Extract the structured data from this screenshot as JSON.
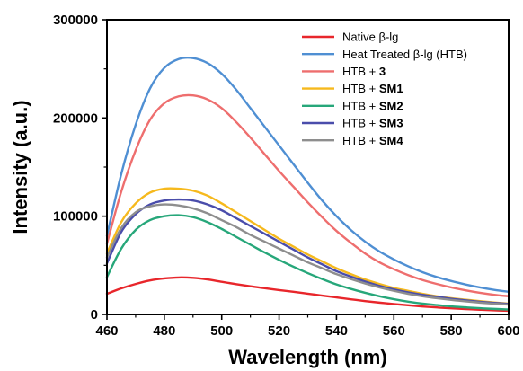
{
  "chart_data": {
    "type": "line",
    "xlabel": "Wavelength (nm)",
    "ylabel": "Intensity (a.u.)",
    "xlim": [
      460,
      600
    ],
    "ylim": [
      0,
      300000
    ],
    "xticks": [
      460,
      480,
      500,
      520,
      540,
      560,
      580,
      600
    ],
    "yticks": [
      0,
      100000,
      200000,
      300000
    ],
    "x": [
      460,
      465,
      470,
      475,
      480,
      485,
      490,
      495,
      500,
      505,
      510,
      515,
      520,
      525,
      530,
      535,
      540,
      545,
      550,
      555,
      560,
      565,
      570,
      575,
      580,
      585,
      590,
      595,
      600
    ],
    "legend_position": "top-right",
    "grid": false,
    "series": [
      {
        "name": "Native β-lg",
        "name_plain": "Native β-lg",
        "name_bold": "",
        "color": "#e8262b",
        "values": [
          21000,
          26500,
          31000,
          34600,
          36600,
          37600,
          37200,
          35600,
          33200,
          30800,
          28600,
          26700,
          24800,
          23000,
          21100,
          19200,
          17300,
          15400,
          13600,
          12000,
          10600,
          9300,
          8100,
          7100,
          6200,
          5500,
          4800,
          4200,
          3700
        ]
      },
      {
        "name": "Heat Treated β-lg (HTB)",
        "name_plain": "Heat Treated β-lg (HTB)",
        "name_bold": "",
        "color": "#4f8fd3",
        "values": [
          80000,
          143000,
          193000,
          230000,
          251000,
          260000,
          261000,
          256000,
          245000,
          229000,
          210000,
          191000,
          172000,
          153000,
          134000,
          116000,
          100000,
          86000,
          74000,
          64000,
          56000,
          49000,
          43000,
          38000,
          34000,
          30500,
          27500,
          25000,
          23000
        ]
      },
      {
        "name": "HTB + 3",
        "name_plain": "HTB + ",
        "name_bold": "3",
        "color": "#ee6e6e",
        "values": [
          72000,
          125000,
          167000,
          198000,
          215000,
          222000,
          223000,
          219000,
          210000,
          196000,
          180000,
          163000,
          146000,
          130000,
          114000,
          99000,
          85000,
          73000,
          62000,
          53000,
          46000,
          40000,
          35000,
          31000,
          27500,
          24500,
          22000,
          20000,
          18500
        ]
      },
      {
        "name": "HTB + SM1",
        "name_plain": "HTB + ",
        "name_bold": "SM1",
        "color": "#f6b91d",
        "values": [
          62000,
          94000,
          113000,
          124000,
          128000,
          128000,
          126000,
          121000,
          113000,
          104000,
          95000,
          86000,
          77000,
          69000,
          61000,
          54000,
          47000,
          41000,
          35500,
          31000,
          27000,
          24000,
          21000,
          18500,
          16500,
          15000,
          13500,
          12200,
          11000
        ]
      },
      {
        "name": "HTB + SM2",
        "name_plain": "HTB + ",
        "name_bold": "SM2",
        "color": "#27a77a",
        "values": [
          38000,
          67000,
          86000,
          96000,
          100000,
          101000,
          99000,
          94000,
          87000,
          79000,
          71000,
          63000,
          55500,
          48500,
          42000,
          36000,
          30500,
          26000,
          22000,
          18500,
          15500,
          13000,
          11000,
          9500,
          8200,
          7200,
          6300,
          5600,
          5000
        ]
      },
      {
        "name": "HTB + SM3",
        "name_plain": "HTB + ",
        "name_bold": "SM3",
        "color": "#4a4dab",
        "values": [
          52000,
          84000,
          102000,
          112000,
          116000,
          117000,
          116000,
          112000,
          106000,
          98000,
          90000,
          82000,
          74000,
          66000,
          58000,
          51000,
          44000,
          38500,
          33500,
          29000,
          25500,
          22500,
          20000,
          18000,
          16000,
          14300,
          12900,
          11700,
          10700
        ]
      },
      {
        "name": "HTB + SM4",
        "name_plain": "HTB + ",
        "name_bold": "SM4",
        "color": "#8e8e8e",
        "values": [
          58000,
          88000,
          104000,
          110000,
          112000,
          111000,
          108000,
          103000,
          96000,
          89000,
          81000,
          74000,
          67000,
          60000,
          53000,
          47000,
          41000,
          36000,
          31500,
          27500,
          24000,
          21000,
          18500,
          16500,
          14800,
          13300,
          12000,
          10900,
          10000
        ]
      }
    ]
  }
}
